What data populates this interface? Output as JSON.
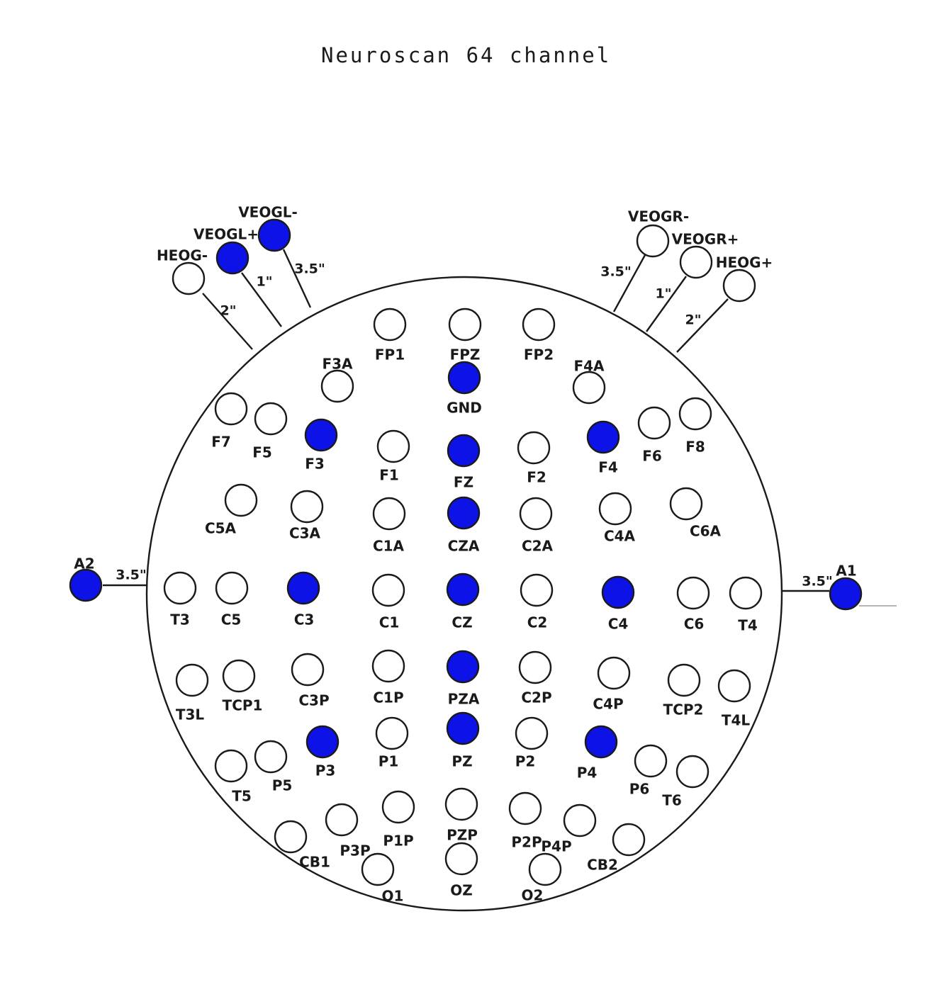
{
  "title": "Neuroscan 64 channel",
  "colors": {
    "ink": "#1a1a1a",
    "selected": "#0d13e6",
    "unselected": "#ffffff"
  },
  "electrodes": [
    {
      "label": "VEOGL-",
      "selected": true
    },
    {
      "label": "VEOGL+",
      "selected": true
    },
    {
      "label": "HEOG-",
      "selected": false
    },
    {
      "label": "VEOGR-",
      "selected": false
    },
    {
      "label": "VEOGR+",
      "selected": false
    },
    {
      "label": "HEOG+",
      "selected": false
    },
    {
      "label": "A2",
      "selected": true
    },
    {
      "label": "A1",
      "selected": true
    },
    {
      "label": "FP1",
      "selected": false
    },
    {
      "label": "FPZ",
      "selected": false
    },
    {
      "label": "FP2",
      "selected": false
    },
    {
      "label": "F3A",
      "selected": false
    },
    {
      "label": "GND",
      "selected": true
    },
    {
      "label": "F4A",
      "selected": false
    },
    {
      "label": "F7",
      "selected": false
    },
    {
      "label": "F5",
      "selected": false
    },
    {
      "label": "F3",
      "selected": true
    },
    {
      "label": "F1",
      "selected": false
    },
    {
      "label": "FZ",
      "selected": true
    },
    {
      "label": "F2",
      "selected": false
    },
    {
      "label": "F4",
      "selected": true
    },
    {
      "label": "F6",
      "selected": false
    },
    {
      "label": "F8",
      "selected": false
    },
    {
      "label": "C5A",
      "selected": false
    },
    {
      "label": "C3A",
      "selected": false
    },
    {
      "label": "C1A",
      "selected": false
    },
    {
      "label": "CZA",
      "selected": true
    },
    {
      "label": "C2A",
      "selected": false
    },
    {
      "label": "C4A",
      "selected": false
    },
    {
      "label": "C6A",
      "selected": false
    },
    {
      "label": "T3",
      "selected": false
    },
    {
      "label": "C5",
      "selected": false
    },
    {
      "label": "C3",
      "selected": true
    },
    {
      "label": "C1",
      "selected": false
    },
    {
      "label": "CZ",
      "selected": true
    },
    {
      "label": "C2",
      "selected": false
    },
    {
      "label": "C4",
      "selected": true
    },
    {
      "label": "C6",
      "selected": false
    },
    {
      "label": "T4",
      "selected": false
    },
    {
      "label": "T3L",
      "selected": false
    },
    {
      "label": "TCP1",
      "selected": false
    },
    {
      "label": "C3P",
      "selected": false
    },
    {
      "label": "C1P",
      "selected": false
    },
    {
      "label": "PZA",
      "selected": true
    },
    {
      "label": "C2P",
      "selected": false
    },
    {
      "label": "C4P",
      "selected": false
    },
    {
      "label": "TCP2",
      "selected": false
    },
    {
      "label": "T4L",
      "selected": false
    },
    {
      "label": "P3",
      "selected": true
    },
    {
      "label": "P1",
      "selected": false
    },
    {
      "label": "PZ",
      "selected": true
    },
    {
      "label": "P2",
      "selected": false
    },
    {
      "label": "P4",
      "selected": true
    },
    {
      "label": "T5",
      "selected": false
    },
    {
      "label": "P5",
      "selected": false
    },
    {
      "label": "P6",
      "selected": false
    },
    {
      "label": "T6",
      "selected": false
    },
    {
      "label": "CB1",
      "selected": false
    },
    {
      "label": "P3P",
      "selected": false
    },
    {
      "label": "P1P",
      "selected": false
    },
    {
      "label": "PZP",
      "selected": false
    },
    {
      "label": "P2P",
      "selected": false
    },
    {
      "label": "P4P",
      "selected": false
    },
    {
      "label": "CB2",
      "selected": false
    },
    {
      "label": "O1",
      "selected": false
    },
    {
      "label": "OZ",
      "selected": false
    },
    {
      "label": "O2",
      "selected": false
    }
  ],
  "distances": [
    {
      "label": "2\""
    },
    {
      "label": "1\""
    },
    {
      "label": "3.5\""
    },
    {
      "label": "3.5\""
    },
    {
      "label": "1\""
    },
    {
      "label": "2\""
    },
    {
      "label": "3.5\""
    },
    {
      "label": "3.5\""
    }
  ]
}
